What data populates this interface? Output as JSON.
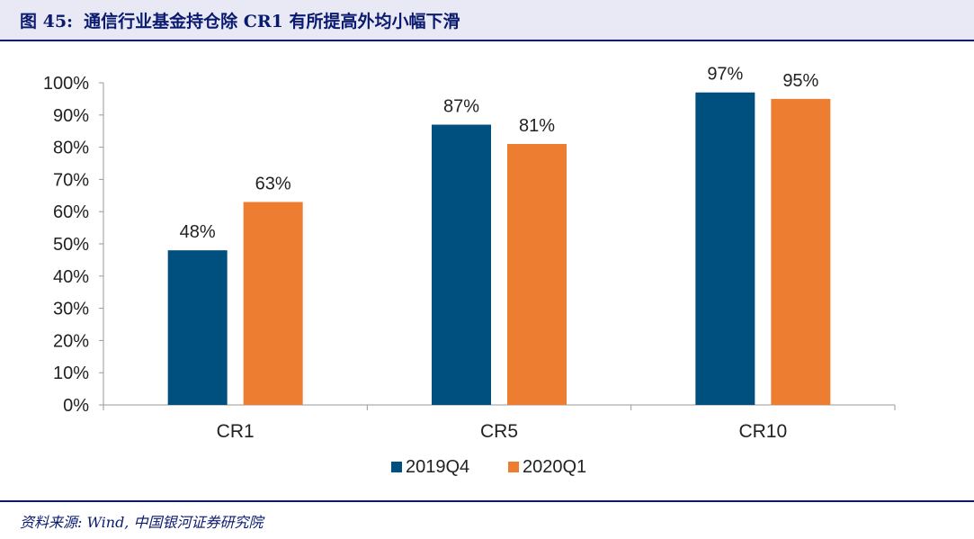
{
  "header": {
    "figure_label": "图 45:",
    "title": "通信行业基金持仓除 CR1 有所提高外均小幅下滑"
  },
  "footer": {
    "source": "资料来源: Wind, 中国银河证券研究院"
  },
  "colors": {
    "series_2019Q4": "#00507f",
    "series_2020Q1": "#ed7d31",
    "title_bar_bg": "#e9e9f6",
    "accent": "#0a1a6e"
  },
  "chart_data": {
    "type": "bar",
    "title": "通信行业基金持仓除 CR1 有所提高外均小幅下滑",
    "xlabel": "",
    "ylabel": "",
    "categories": [
      "CR1",
      "CR5",
      "CR10"
    ],
    "series": [
      {
        "name": "2019Q4",
        "values": [
          48,
          87,
          97
        ],
        "color": "#00507f"
      },
      {
        "name": "2020Q1",
        "values": [
          63,
          81,
          95
        ],
        "color": "#ed7d31"
      }
    ],
    "data_labels": [
      [
        "48%",
        "87%",
        "97%"
      ],
      [
        "63%",
        "81%",
        "95%"
      ]
    ],
    "ylim": [
      0,
      100
    ],
    "yticks": [
      "0%",
      "10%",
      "20%",
      "30%",
      "40%",
      "50%",
      "60%",
      "70%",
      "80%",
      "90%",
      "100%"
    ],
    "grid": false,
    "legend_position": "bottom-center"
  }
}
